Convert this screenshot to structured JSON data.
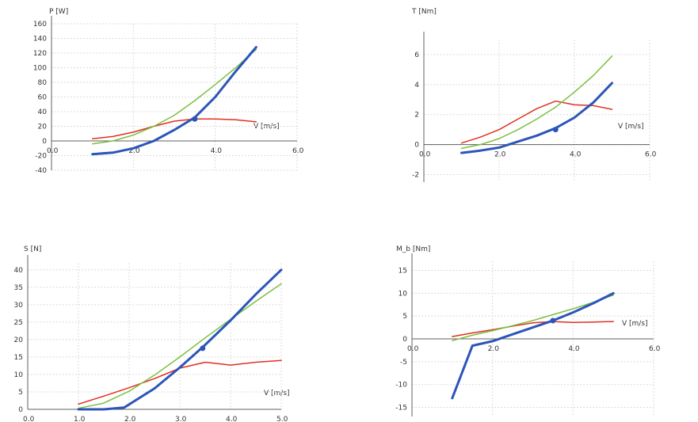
{
  "colors": {
    "series_thick": "#2b55b8",
    "series_red": "#e03020",
    "series_green": "#7cc040"
  },
  "chart_data": [
    {
      "type": "line",
      "ylabel": "P [W]",
      "xlabel": "V [m/s]",
      "xlim": [
        0,
        6
      ],
      "ylim": [
        -40,
        160
      ],
      "xticks": [
        "0.0",
        "2.0",
        "4.0",
        "6.0"
      ],
      "yticks": [
        "160",
        "140",
        "120",
        "100",
        "80",
        "60",
        "40",
        "20",
        "0",
        "-20",
        "-40"
      ],
      "marker": {
        "x": 3.5,
        "y": 30
      },
      "series": [
        {
          "color": "#2b55b8",
          "width": 3,
          "points": [
            [
              1.0,
              -18
            ],
            [
              1.5,
              -16
            ],
            [
              2.0,
              -10
            ],
            [
              2.5,
              0
            ],
            [
              3.0,
              15
            ],
            [
              3.5,
              32
            ],
            [
              4.0,
              60
            ],
            [
              4.5,
              95
            ],
            [
              5.0,
              128
            ]
          ]
        },
        {
          "color": "#e03020",
          "width": 1.5,
          "points": [
            [
              1.0,
              3
            ],
            [
              1.5,
              6
            ],
            [
              2.0,
              12
            ],
            [
              2.5,
              20
            ],
            [
              3.0,
              27
            ],
            [
              3.5,
              30
            ],
            [
              4.0,
              30
            ],
            [
              4.5,
              29
            ],
            [
              5.0,
              26
            ]
          ]
        },
        {
          "color": "#7cc040",
          "width": 1.5,
          "points": [
            [
              1.0,
              -4
            ],
            [
              1.5,
              0
            ],
            [
              2.0,
              8
            ],
            [
              2.5,
              20
            ],
            [
              3.0,
              35
            ],
            [
              3.5,
              55
            ],
            [
              4.0,
              77
            ],
            [
              4.5,
              100
            ],
            [
              5.0,
              125
            ]
          ]
        }
      ]
    },
    {
      "type": "line",
      "ylabel": "T [Nm]",
      "xlabel": "V [m/s]",
      "xlim": [
        0,
        6
      ],
      "ylim": [
        -2.5,
        7
      ],
      "xticks": [
        "0.0",
        "2.0",
        "4.0",
        "6.0"
      ],
      "yticks": [
        "6",
        "4",
        "2",
        "0",
        "-2"
      ],
      "marker": {
        "x": 3.5,
        "y": 1.0
      },
      "series": [
        {
          "color": "#2b55b8",
          "width": 3,
          "points": [
            [
              1.0,
              -0.55
            ],
            [
              1.5,
              -0.4
            ],
            [
              2.0,
              -0.2
            ],
            [
              2.5,
              0.2
            ],
            [
              3.0,
              0.6
            ],
            [
              3.5,
              1.1
            ],
            [
              4.0,
              1.8
            ],
            [
              4.5,
              2.8
            ],
            [
              5.0,
              4.1
            ]
          ]
        },
        {
          "color": "#e03020",
          "width": 1.5,
          "points": [
            [
              1.0,
              0.1
            ],
            [
              1.5,
              0.5
            ],
            [
              2.0,
              1.0
            ],
            [
              2.5,
              1.7
            ],
            [
              3.0,
              2.4
            ],
            [
              3.5,
              2.9
            ],
            [
              4.0,
              2.65
            ],
            [
              4.5,
              2.6
            ],
            [
              5.0,
              2.35
            ]
          ]
        },
        {
          "color": "#7cc040",
          "width": 1.5,
          "points": [
            [
              1.0,
              -0.25
            ],
            [
              1.5,
              0.0
            ],
            [
              2.0,
              0.4
            ],
            [
              2.5,
              1.0
            ],
            [
              3.0,
              1.7
            ],
            [
              3.5,
              2.5
            ],
            [
              4.0,
              3.5
            ],
            [
              4.5,
              4.6
            ],
            [
              5.0,
              5.9
            ]
          ]
        }
      ]
    },
    {
      "type": "line",
      "ylabel": "S [N]",
      "xlabel": "V [m/s]",
      "xlim": [
        0,
        5
      ],
      "ylim": [
        0,
        42
      ],
      "xticks": [
        "0.0",
        "1.0",
        "2.0",
        "3.0",
        "4.0",
        "5.0"
      ],
      "yticks": [
        "40",
        "35",
        "30",
        "25",
        "20",
        "15",
        "10",
        "5",
        "0"
      ],
      "marker": {
        "x": 3.45,
        "y": 17.5
      },
      "series": [
        {
          "color": "#2b55b8",
          "width": 3,
          "points": [
            [
              1.0,
              0
            ],
            [
              1.5,
              0
            ],
            [
              1.9,
              0.5
            ],
            [
              2.5,
              6
            ],
            [
              3.0,
              12
            ],
            [
              3.5,
              18.5
            ],
            [
              4.0,
              25.5
            ],
            [
              4.5,
              33
            ],
            [
              5.0,
              40
            ]
          ]
        },
        {
          "color": "#e03020",
          "width": 1.5,
          "points": [
            [
              1.0,
              1.5
            ],
            [
              1.5,
              3.8
            ],
            [
              2.0,
              6.2
            ],
            [
              2.5,
              8.8
            ],
            [
              3.0,
              11.8
            ],
            [
              3.5,
              13.5
            ],
            [
              4.0,
              12.7
            ],
            [
              4.5,
              13.5
            ],
            [
              5.0,
              14
            ]
          ]
        },
        {
          "color": "#7cc040",
          "width": 1.5,
          "points": [
            [
              1.0,
              0.3
            ],
            [
              1.5,
              1.8
            ],
            [
              2.0,
              5.2
            ],
            [
              2.5,
              9.8
            ],
            [
              3.0,
              15
            ],
            [
              3.5,
              20.5
            ],
            [
              4.0,
              25.8
            ],
            [
              4.5,
              31
            ],
            [
              5.0,
              36
            ]
          ]
        }
      ]
    },
    {
      "type": "line",
      "ylabel": "M_b [Nm]",
      "xlabel": "V [m/s]",
      "xlim": [
        0,
        6
      ],
      "ylim": [
        -17,
        17
      ],
      "xticks": [
        "0.0",
        "2.0",
        "4.0",
        "6.0"
      ],
      "yticks": [
        "15",
        "10",
        "5",
        "0",
        "-5",
        "-10",
        "-15"
      ],
      "marker": {
        "x": 3.5,
        "y": 4
      },
      "series": [
        {
          "color": "#2b55b8",
          "width": 3,
          "points": [
            [
              1.0,
              -13
            ],
            [
              1.5,
              -1.5
            ],
            [
              2.0,
              -0.5
            ],
            [
              2.5,
              1
            ],
            [
              3.0,
              2.5
            ],
            [
              3.5,
              4
            ],
            [
              4.0,
              5.8
            ],
            [
              4.5,
              7.8
            ],
            [
              5.0,
              10
            ]
          ]
        },
        {
          "color": "#e03020",
          "width": 1.5,
          "points": [
            [
              1.0,
              0.5
            ],
            [
              1.5,
              1.3
            ],
            [
              2.0,
              2.0
            ],
            [
              2.5,
              2.8
            ],
            [
              3.0,
              3.5
            ],
            [
              3.5,
              3.8
            ],
            [
              4.0,
              3.6
            ],
            [
              4.5,
              3.7
            ],
            [
              5.0,
              3.8
            ]
          ]
        },
        {
          "color": "#7cc040",
          "width": 1.5,
          "points": [
            [
              1.0,
              -0.4
            ],
            [
              1.5,
              0.8
            ],
            [
              2.0,
              1.8
            ],
            [
              2.5,
              2.9
            ],
            [
              3.0,
              4.0
            ],
            [
              3.5,
              5.3
            ],
            [
              4.0,
              6.6
            ],
            [
              4.5,
              8.0
            ],
            [
              5.0,
              9.6
            ]
          ]
        }
      ]
    }
  ]
}
